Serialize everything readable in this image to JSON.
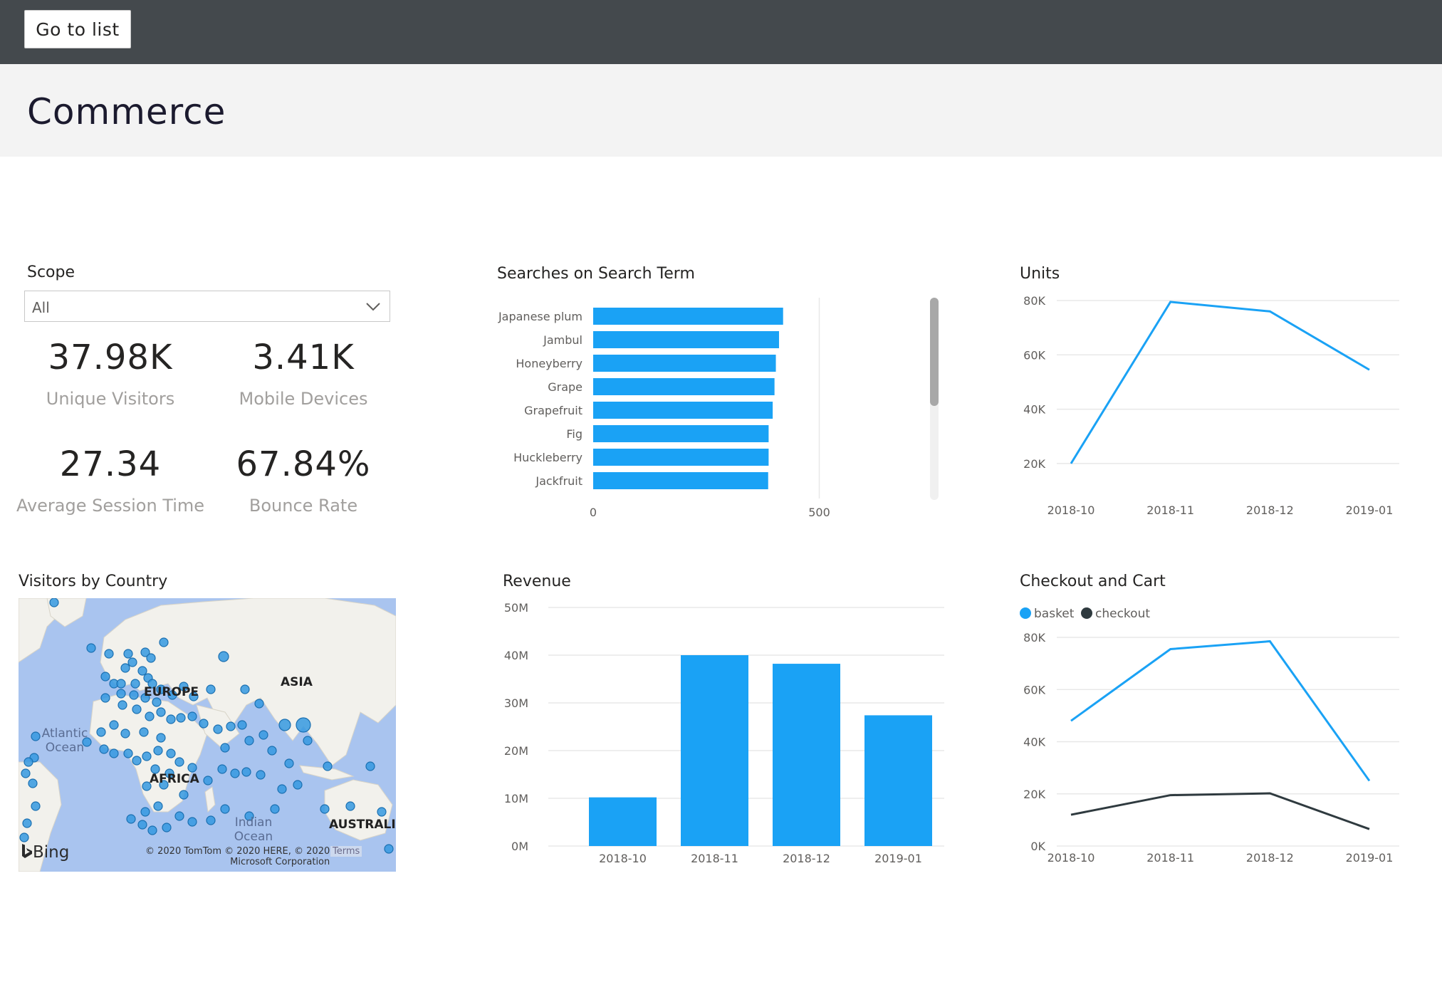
{
  "topbar": {
    "go_to_list_label": "Go to list"
  },
  "page": {
    "title": "Commerce"
  },
  "scope": {
    "title": "Scope",
    "selected": "All"
  },
  "kpis": [
    {
      "value": "37.98K",
      "label": "Unique Visitors"
    },
    {
      "value": "3.41K",
      "label": "Mobile Devices"
    },
    {
      "value": "27.34",
      "label": "Average Session Time"
    },
    {
      "value": "67.84%",
      "label": "Bounce Rate"
    }
  ],
  "map": {
    "title": "Visitors by Country",
    "labels": {
      "europe": "EUROPE",
      "asia": "ASIA",
      "africa": "AFRICA",
      "australia": "AUSTRALIA",
      "atlantic": "Atlantic Ocean",
      "indian": "Indian Ocean"
    },
    "provider": "Bing",
    "copyright_line1": "© 2020 TomTom © 2020 HERE, © 2020",
    "copyright_line2": "Microsoft Corporation",
    "terms": "Terms",
    "dot_color": "#3599e0"
  },
  "colors": {
    "accent": "#1aa2f5",
    "dark_series": "#2f3a3f",
    "gridline": "#e8e8e8"
  },
  "chart_data": [
    {
      "id": "searches",
      "type": "bar",
      "orientation": "horizontal",
      "title": "Searches on Search Term",
      "categories": [
        "Japanese plum",
        "Jambul",
        "Honeyberry",
        "Grape",
        "Grapefruit",
        "Fig",
        "Huckleberry",
        "Jackfruit"
      ],
      "values": [
        420,
        411,
        404,
        401,
        397,
        388,
        388,
        387
      ],
      "xlim": [
        0,
        600
      ],
      "xticks": [
        0,
        500
      ],
      "xtick_labels": [
        "0",
        "500"
      ],
      "color": "#1aa2f5",
      "grid": true
    },
    {
      "id": "units",
      "type": "line",
      "title": "Units",
      "categories": [
        "2018-10",
        "2018-11",
        "2018-12",
        "2019-01"
      ],
      "series": [
        {
          "values": [
            20000,
            79500,
            76000,
            54500
          ],
          "color": "#1aa2f5"
        }
      ],
      "ylim": [
        10000,
        80000
      ],
      "yticks": [
        20000,
        40000,
        60000,
        80000
      ],
      "ytick_labels": [
        "20K",
        "40K",
        "60K",
        "80K"
      ],
      "grid": true
    },
    {
      "id": "revenue",
      "type": "bar",
      "title": "Revenue",
      "categories": [
        "2018-10",
        "2018-11",
        "2018-12",
        "2019-01"
      ],
      "values": [
        10200000,
        40000000,
        38200000,
        27400000
      ],
      "ylim": [
        0,
        50000000
      ],
      "yticks": [
        0,
        10000000,
        20000000,
        30000000,
        40000000,
        50000000
      ],
      "ytick_labels": [
        "0M",
        "10M",
        "20M",
        "30M",
        "40M",
        "50M"
      ],
      "color": "#1aa2f5",
      "grid": true
    },
    {
      "id": "checkout",
      "type": "line",
      "title": "Checkout and Cart",
      "categories": [
        "2018-10",
        "2018-11",
        "2018-12",
        "2019-01"
      ],
      "series": [
        {
          "name": "basket",
          "values": [
            48000,
            75500,
            78500,
            25000
          ],
          "color": "#1aa2f5"
        },
        {
          "name": "checkout",
          "values": [
            12000,
            19500,
            20200,
            6500
          ],
          "color": "#2f3a3f"
        }
      ],
      "ylim": [
        0,
        80000
      ],
      "yticks": [
        0,
        20000,
        40000,
        60000,
        80000
      ],
      "ytick_labels": [
        "0K",
        "20K",
        "40K",
        "60K",
        "80K"
      ],
      "legend": "top-left",
      "grid": true
    }
  ]
}
